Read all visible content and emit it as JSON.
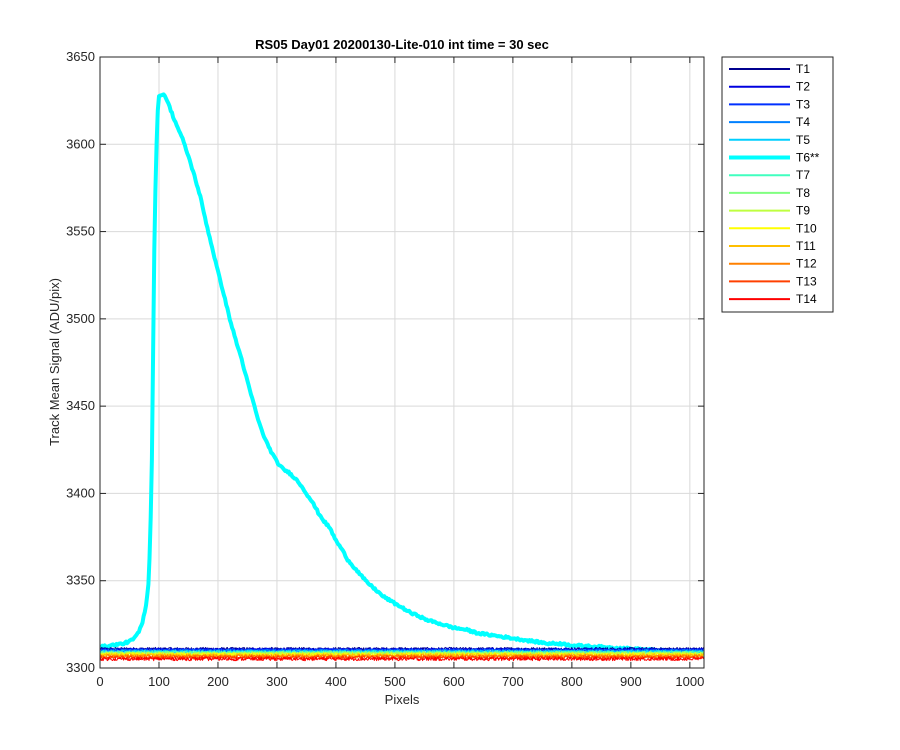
{
  "chart_data": {
    "type": "line",
    "title": "RS05 Day01 20200130-Lite-010 int time = 30 sec",
    "xlabel": "Pixels",
    "ylabel": "Track Mean Signal (ADU/pix)",
    "xlim": [
      0,
      1024
    ],
    "ylim": [
      3300,
      3650
    ],
    "xticks": [
      0,
      100,
      200,
      300,
      400,
      500,
      600,
      700,
      800,
      900,
      1000
    ],
    "yticks": [
      3300,
      3350,
      3400,
      3450,
      3500,
      3550,
      3600,
      3650
    ],
    "grid": true,
    "legend_position": "outside-top-right",
    "series": [
      {
        "name": "T1",
        "color": "#00008f",
        "baseline": 3311.0,
        "noise": 0.8
      },
      {
        "name": "T2",
        "color": "#0000df",
        "baseline": 3310.6,
        "noise": 0.8
      },
      {
        "name": "T3",
        "color": "#0030ff",
        "baseline": 3310.2,
        "noise": 0.9
      },
      {
        "name": "T4",
        "color": "#0080ff",
        "baseline": 3309.8,
        "noise": 0.9
      },
      {
        "name": "T5",
        "color": "#00cfff",
        "baseline": 3309.4,
        "noise": 0.9
      },
      {
        "name": "T6**",
        "color": "#00ffff",
        "emphasized": true,
        "points": [
          [
            0,
            3312
          ],
          [
            20,
            3313
          ],
          [
            40,
            3314
          ],
          [
            55,
            3316
          ],
          [
            65,
            3320
          ],
          [
            72,
            3326
          ],
          [
            78,
            3336
          ],
          [
            82,
            3348
          ],
          [
            85,
            3370
          ],
          [
            88,
            3420
          ],
          [
            90,
            3480
          ],
          [
            92,
            3540
          ],
          [
            95,
            3590
          ],
          [
            98,
            3620
          ],
          [
            100,
            3627
          ],
          [
            105,
            3629
          ],
          [
            110,
            3628
          ],
          [
            115,
            3624
          ],
          [
            125,
            3615
          ],
          [
            140,
            3603
          ],
          [
            150,
            3593
          ],
          [
            160,
            3582
          ],
          [
            170,
            3570
          ],
          [
            180,
            3555
          ],
          [
            190,
            3541
          ],
          [
            200,
            3527
          ],
          [
            210,
            3514
          ],
          [
            220,
            3500
          ],
          [
            230,
            3488
          ],
          [
            240,
            3477
          ],
          [
            250,
            3464
          ],
          [
            260,
            3452
          ],
          [
            270,
            3440
          ],
          [
            280,
            3431
          ],
          [
            290,
            3424
          ],
          [
            300,
            3418
          ],
          [
            310,
            3414
          ],
          [
            320,
            3412
          ],
          [
            330,
            3409
          ],
          [
            340,
            3405
          ],
          [
            350,
            3400
          ],
          [
            360,
            3395
          ],
          [
            370,
            3389
          ],
          [
            380,
            3384
          ],
          [
            390,
            3380
          ],
          [
            400,
            3373
          ],
          [
            410,
            3368
          ],
          [
            420,
            3362
          ],
          [
            430,
            3358
          ],
          [
            440,
            3354
          ],
          [
            450,
            3350
          ],
          [
            460,
            3347
          ],
          [
            470,
            3344
          ],
          [
            480,
            3341
          ],
          [
            490,
            3339
          ],
          [
            500,
            3337
          ],
          [
            510,
            3335
          ],
          [
            520,
            3333
          ],
          [
            530,
            3331
          ],
          [
            540,
            3330
          ],
          [
            550,
            3328
          ],
          [
            560,
            3327
          ],
          [
            570,
            3326
          ],
          [
            580,
            3325
          ],
          [
            590,
            3324
          ],
          [
            600,
            3323
          ],
          [
            620,
            3322
          ],
          [
            640,
            3320
          ],
          [
            660,
            3319
          ],
          [
            680,
            3318
          ],
          [
            700,
            3317
          ],
          [
            720,
            3316
          ],
          [
            740,
            3315
          ],
          [
            760,
            3314
          ],
          [
            780,
            3314
          ],
          [
            800,
            3313
          ],
          [
            850,
            3312
          ],
          [
            900,
            3311
          ],
          [
            950,
            3310
          ],
          [
            1000,
            3309
          ],
          [
            1024,
            3308
          ]
        ]
      },
      {
        "name": "T7",
        "color": "#40ffbf",
        "baseline": 3309.0,
        "noise": 0.9
      },
      {
        "name": "T8",
        "color": "#80ff80",
        "baseline": 3308.6,
        "noise": 0.9
      },
      {
        "name": "T9",
        "color": "#bfff40",
        "baseline": 3308.2,
        "noise": 0.9
      },
      {
        "name": "T10",
        "color": "#ffff00",
        "baseline": 3307.8,
        "noise": 0.9
      },
      {
        "name": "T11",
        "color": "#ffbf00",
        "baseline": 3307.3,
        "noise": 1.0
      },
      {
        "name": "T12",
        "color": "#ff8000",
        "baseline": 3306.7,
        "noise": 1.0
      },
      {
        "name": "T13",
        "color": "#ff4000",
        "baseline": 3306.0,
        "noise": 1.0
      },
      {
        "name": "T14",
        "color": "#ff0000",
        "baseline": 3305.2,
        "noise": 1.0
      }
    ]
  }
}
